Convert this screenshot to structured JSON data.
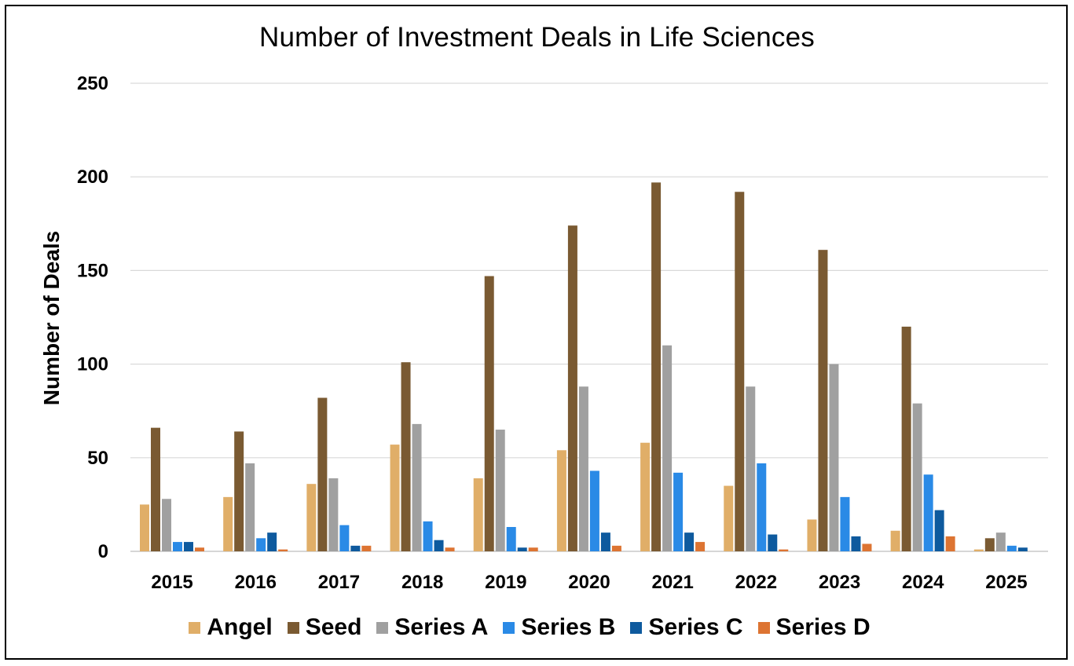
{
  "chart_data": {
    "type": "bar",
    "title": "Number of Investment Deals in Life Sciences",
    "xlabel": "",
    "ylabel": "Number of Deals",
    "ylim": [
      0,
      250
    ],
    "yticks": [
      "0",
      "50",
      "100",
      "150",
      "200",
      "250"
    ],
    "grid": true,
    "legend_position": "bottom",
    "categories": [
      "2015",
      "2016",
      "2017",
      "2018",
      "2019",
      "2020",
      "2021",
      "2022",
      "2023",
      "2024",
      "2025"
    ],
    "series": [
      {
        "name": "Angel",
        "color": "#E0AE68",
        "values": [
          25,
          29,
          36,
          57,
          39,
          54,
          58,
          35,
          17,
          11,
          1
        ]
      },
      {
        "name": "Seed",
        "color": "#7A5A32",
        "values": [
          66,
          64,
          82,
          101,
          147,
          174,
          197,
          192,
          161,
          120,
          7
        ]
      },
      {
        "name": "Series A",
        "color": "#A0A0A0",
        "values": [
          28,
          47,
          39,
          68,
          65,
          88,
          110,
          88,
          100,
          79,
          10
        ]
      },
      {
        "name": "Series B",
        "color": "#2A8AE6",
        "values": [
          5,
          7,
          14,
          16,
          13,
          43,
          42,
          47,
          29,
          41,
          3
        ]
      },
      {
        "name": "Series C",
        "color": "#0E5A9E",
        "values": [
          5,
          10,
          3,
          6,
          2,
          10,
          10,
          9,
          8,
          22,
          2
        ]
      },
      {
        "name": "Series D",
        "color": "#DD7432",
        "values": [
          2,
          1,
          3,
          2,
          2,
          3,
          5,
          1,
          4,
          8,
          0
        ]
      }
    ]
  }
}
